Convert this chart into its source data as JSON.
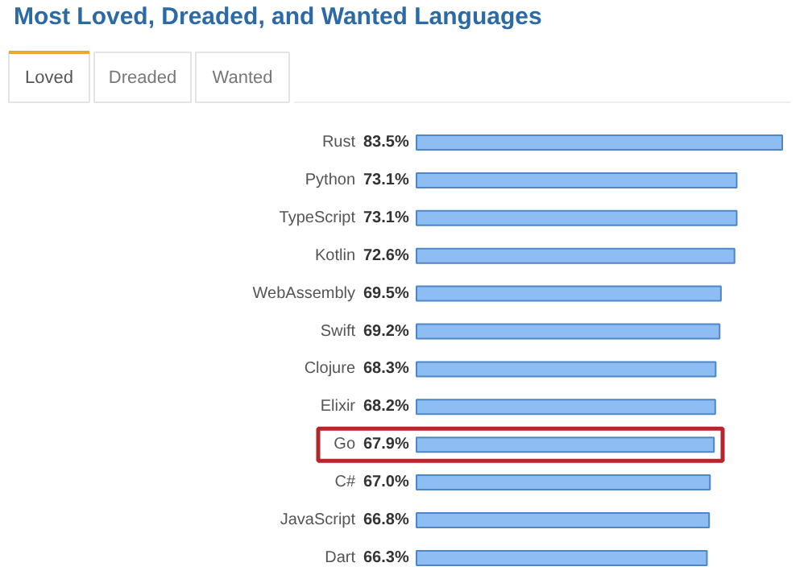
{
  "chart_data": {
    "type": "bar",
    "orientation": "horizontal",
    "title": "Most Loved, Dreaded, and Wanted Languages",
    "annotations": [
      "Loved",
      "Dreaded",
      "Wanted"
    ],
    "categories": [
      "Rust",
      "Python",
      "TypeScript",
      "Kotlin",
      "WebAssembly",
      "Swift",
      "Clojure",
      "Elixir",
      "Go",
      "C#",
      "JavaScript",
      "Dart"
    ],
    "values": [
      83.5,
      73.1,
      73.1,
      72.6,
      69.5,
      69.2,
      68.3,
      68.2,
      67.9,
      67.0,
      66.8,
      66.3
    ],
    "value_labels": [
      "83.5%",
      "73.1%",
      "73.1%",
      "72.6%",
      "69.5%",
      "69.2%",
      "68.3%",
      "68.2%",
      "67.9%",
      "67.0%",
      "66.8%",
      "66.3%"
    ],
    "color": "#8dbdf2"
  }
}
